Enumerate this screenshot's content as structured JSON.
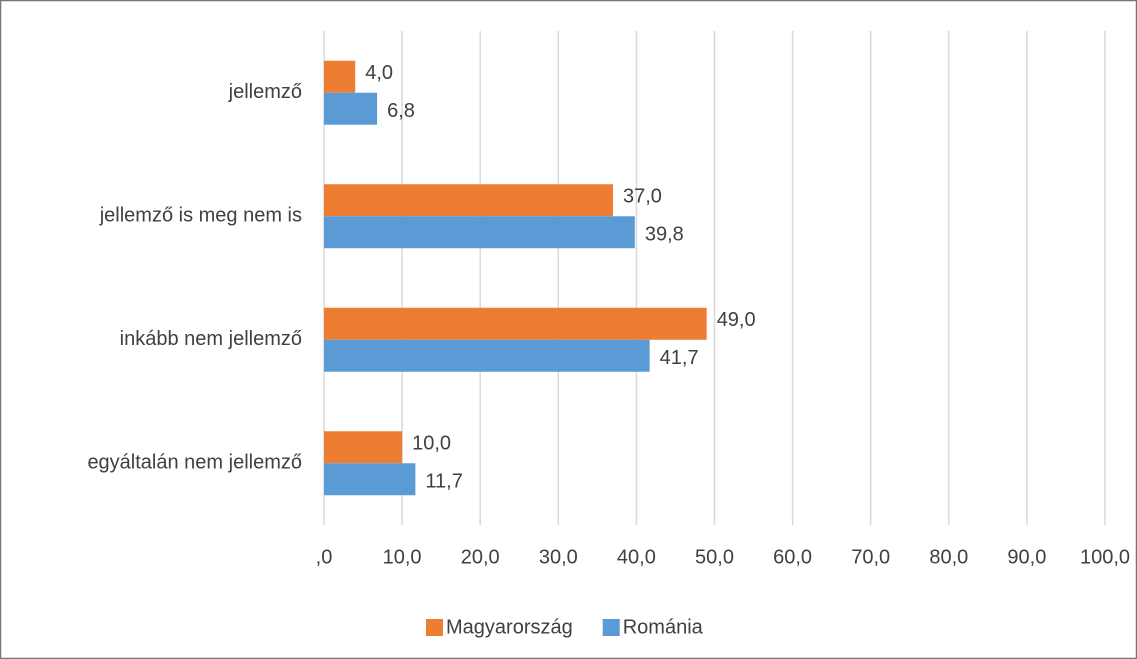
{
  "chart_data": {
    "type": "hbar",
    "categories": [
      "jellemző",
      "jellemző is meg nem is",
      "inkább nem jellemző",
      "egyáltalán nem jellemző"
    ],
    "series": [
      {
        "name": "Magyarország",
        "color": "#ed7d31",
        "values": [
          4.0,
          37.0,
          49.0,
          10.0
        ],
        "value_labels": [
          "4,0",
          "37,0",
          "49,0",
          "10,0"
        ]
      },
      {
        "name": "Románia",
        "color": "#5b9bd5",
        "values": [
          6.8,
          39.8,
          41.7,
          11.7
        ],
        "value_labels": [
          "6,8",
          "39,8",
          "41,7",
          "11,7"
        ]
      }
    ],
    "xlim": [
      0,
      100
    ],
    "xticks": [
      {
        "value": 0,
        "label": ",0"
      },
      {
        "value": 10,
        "label": "10,0"
      },
      {
        "value": 20,
        "label": "20,0"
      },
      {
        "value": 30,
        "label": "30,0"
      },
      {
        "value": 40,
        "label": "40,0"
      },
      {
        "value": 50,
        "label": "50,0"
      },
      {
        "value": 60,
        "label": "60,0"
      },
      {
        "value": 70,
        "label": "70,0"
      },
      {
        "value": 80,
        "label": "80,0"
      },
      {
        "value": 90,
        "label": "90,0"
      },
      {
        "value": 100,
        "label": "100,0"
      }
    ],
    "grid": true,
    "legend": "bottom"
  }
}
